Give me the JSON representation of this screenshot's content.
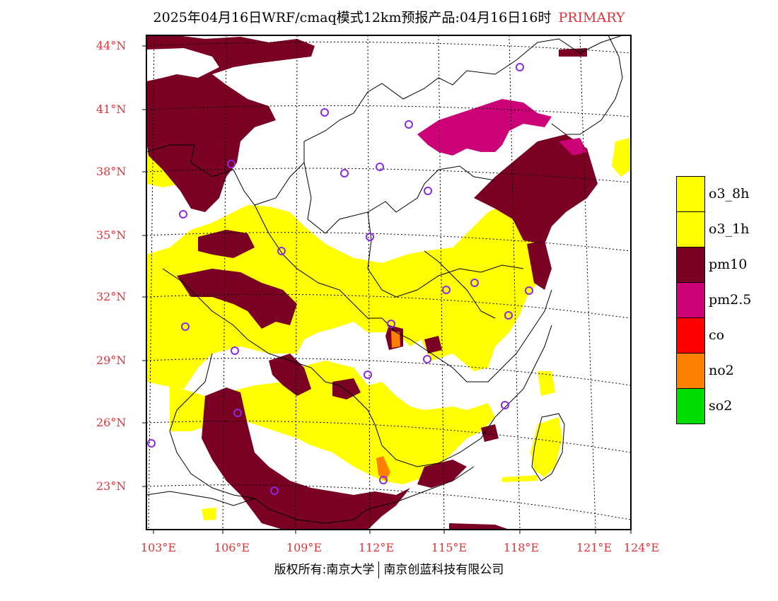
{
  "title": {
    "text": "2025年04月16日WRF/cmaq模式12km预报产品:04月16日16时",
    "tag": "PRIMARY"
  },
  "axes": {
    "lat_labels": [
      "44°N",
      "41°N",
      "38°N",
      "35°N",
      "32°N",
      "29°N",
      "26°N",
      "23°N"
    ],
    "lon_labels": [
      "103°E",
      "106°E",
      "109°E",
      "112°E",
      "115°E",
      "118°E",
      "121°E",
      "124°E"
    ],
    "lat_range": [
      21,
      44.5
    ],
    "lon_range": [
      102.7,
      124
    ]
  },
  "legend": {
    "items": [
      {
        "label": "o3_8h",
        "color": "#ffff00"
      },
      {
        "label": "o3_1h",
        "color": "#ffff00"
      },
      {
        "label": "pm10",
        "color": "#7a0024"
      },
      {
        "label": "pm2.5",
        "color": "#cc0077"
      },
      {
        "label": "co",
        "color": "#ff0000"
      },
      {
        "label": "no2",
        "color": "#ff7f00"
      },
      {
        "label": "so2",
        "color": "#00dd00"
      }
    ]
  },
  "footer": {
    "left": "版权所有:南京大学",
    "right": "南京创蓝科技有限公司"
  },
  "colors": {
    "o3": "#ffff00",
    "pm10": "#7a0024",
    "pm25": "#cc0077",
    "no2": "#ff7f00",
    "station": "#8a2be2",
    "label": "#e0343a"
  }
}
